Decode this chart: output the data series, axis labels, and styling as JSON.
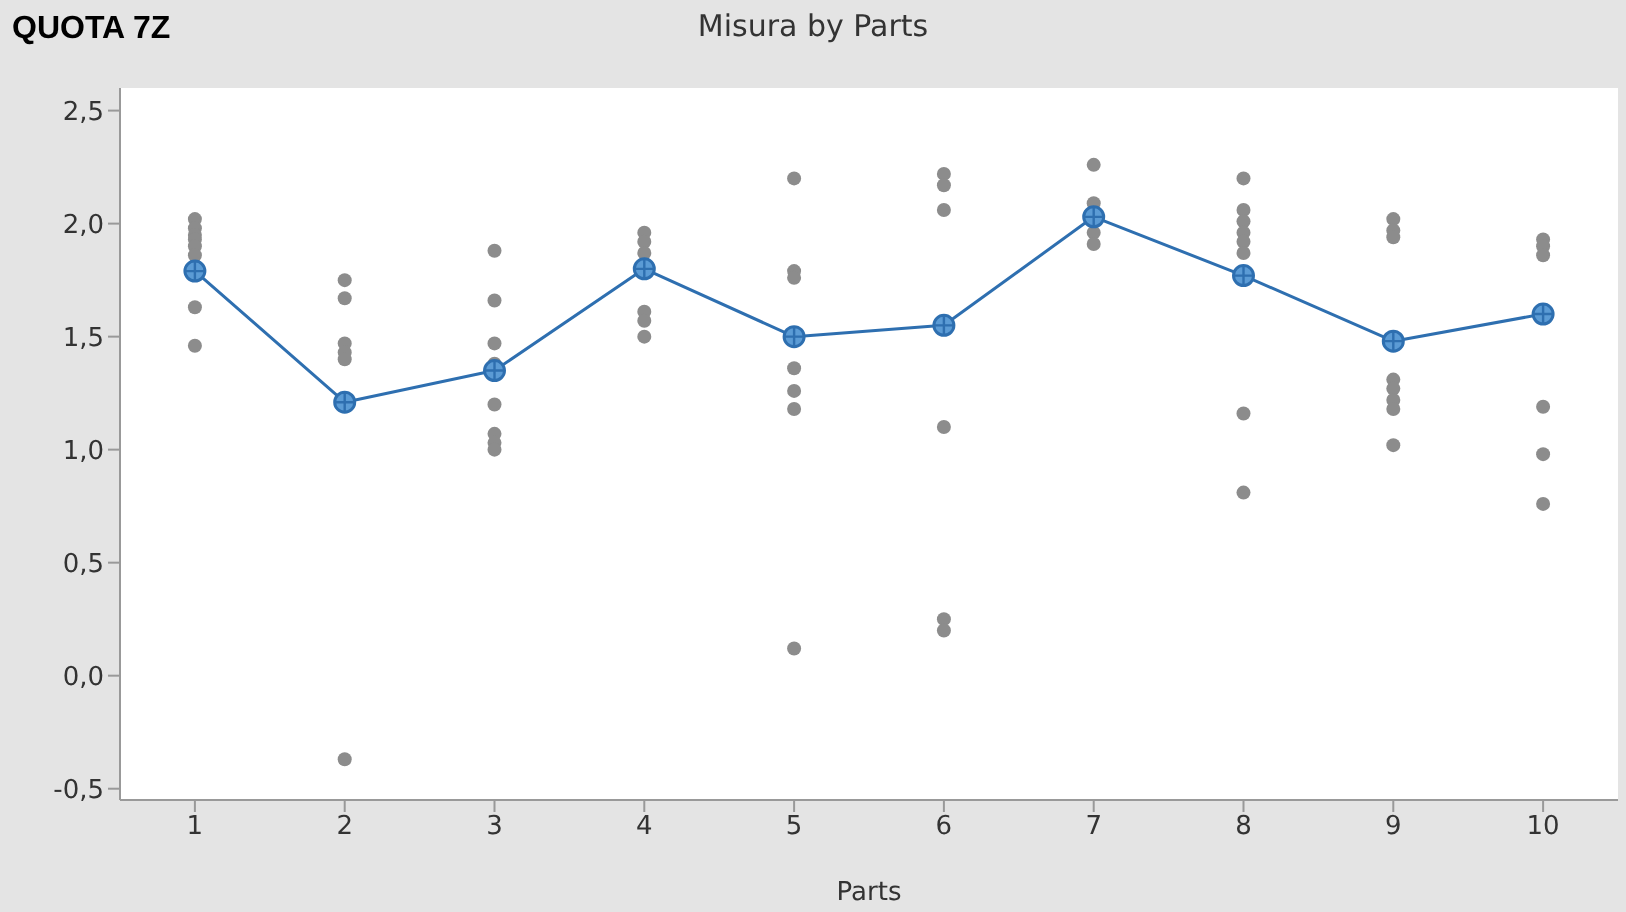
{
  "chart_data": {
    "type": "scatter",
    "title": "Misura by Parts",
    "xlabel": "Parts",
    "annotations": [
      "QUOTA 7Z"
    ],
    "xlim": [
      0.5,
      10.5
    ],
    "xticks": [
      1,
      2,
      3,
      4,
      5,
      6,
      7,
      8,
      9,
      10
    ],
    "ylim": [
      -0.55,
      2.6
    ],
    "yticks": [
      {
        "value": -0.5,
        "label": "-0,5"
      },
      {
        "value": 0,
        "label": "0,0"
      },
      {
        "value": 0.5,
        "label": "0,5"
      },
      {
        "value": 1,
        "label": "1,0"
      },
      {
        "value": 1.5,
        "label": "1,5"
      },
      {
        "value": 2,
        "label": "2,0"
      },
      {
        "value": 2.5,
        "label": "2,5"
      }
    ],
    "series": [
      {
        "color": "#8c8c8c",
        "marker": "circle",
        "x": [
          1,
          1,
          1,
          1,
          1,
          1,
          1,
          1,
          2,
          2,
          2,
          2,
          2,
          2,
          3,
          3,
          3,
          3,
          3,
          3,
          3,
          3,
          4,
          4,
          4,
          4,
          4,
          4,
          5,
          5,
          5,
          5,
          5,
          5,
          5,
          6,
          6,
          6,
          6,
          6,
          6,
          7,
          7,
          7,
          7,
          8,
          8,
          8,
          8,
          8,
          8,
          8,
          8,
          9,
          9,
          9,
          9,
          9,
          9,
          9,
          9,
          10,
          10,
          10,
          10,
          10,
          10
        ],
        "values": [
          2.02,
          1.98,
          1.95,
          1.93,
          1.9,
          1.86,
          1.63,
          1.46,
          1.75,
          1.67,
          1.47,
          1.43,
          1.4,
          -0.37,
          1.88,
          1.66,
          1.47,
          1.38,
          1.2,
          1.07,
          1.03,
          1.0,
          1.96,
          1.92,
          1.87,
          1.61,
          1.57,
          1.5,
          2.2,
          1.79,
          1.76,
          1.36,
          1.26,
          1.18,
          0.12,
          2.22,
          2.17,
          2.06,
          1.1,
          0.25,
          0.2,
          2.26,
          2.09,
          1.96,
          1.91,
          2.2,
          2.06,
          2.01,
          1.96,
          1.92,
          1.87,
          1.16,
          0.81,
          2.02,
          1.97,
          1.94,
          1.31,
          1.27,
          1.22,
          1.18,
          1.02,
          1.93,
          1.9,
          1.86,
          1.19,
          0.98,
          0.76
        ]
      },
      {
        "type": "line",
        "color": "#2e6fb0",
        "marker": "circle",
        "x": [
          1,
          2,
          3,
          4,
          5,
          6,
          7,
          8,
          9,
          10
        ],
        "values": [
          1.79,
          1.21,
          1.35,
          1.8,
          1.5,
          1.55,
          2.03,
          1.77,
          1.48,
          1.6
        ]
      }
    ]
  }
}
